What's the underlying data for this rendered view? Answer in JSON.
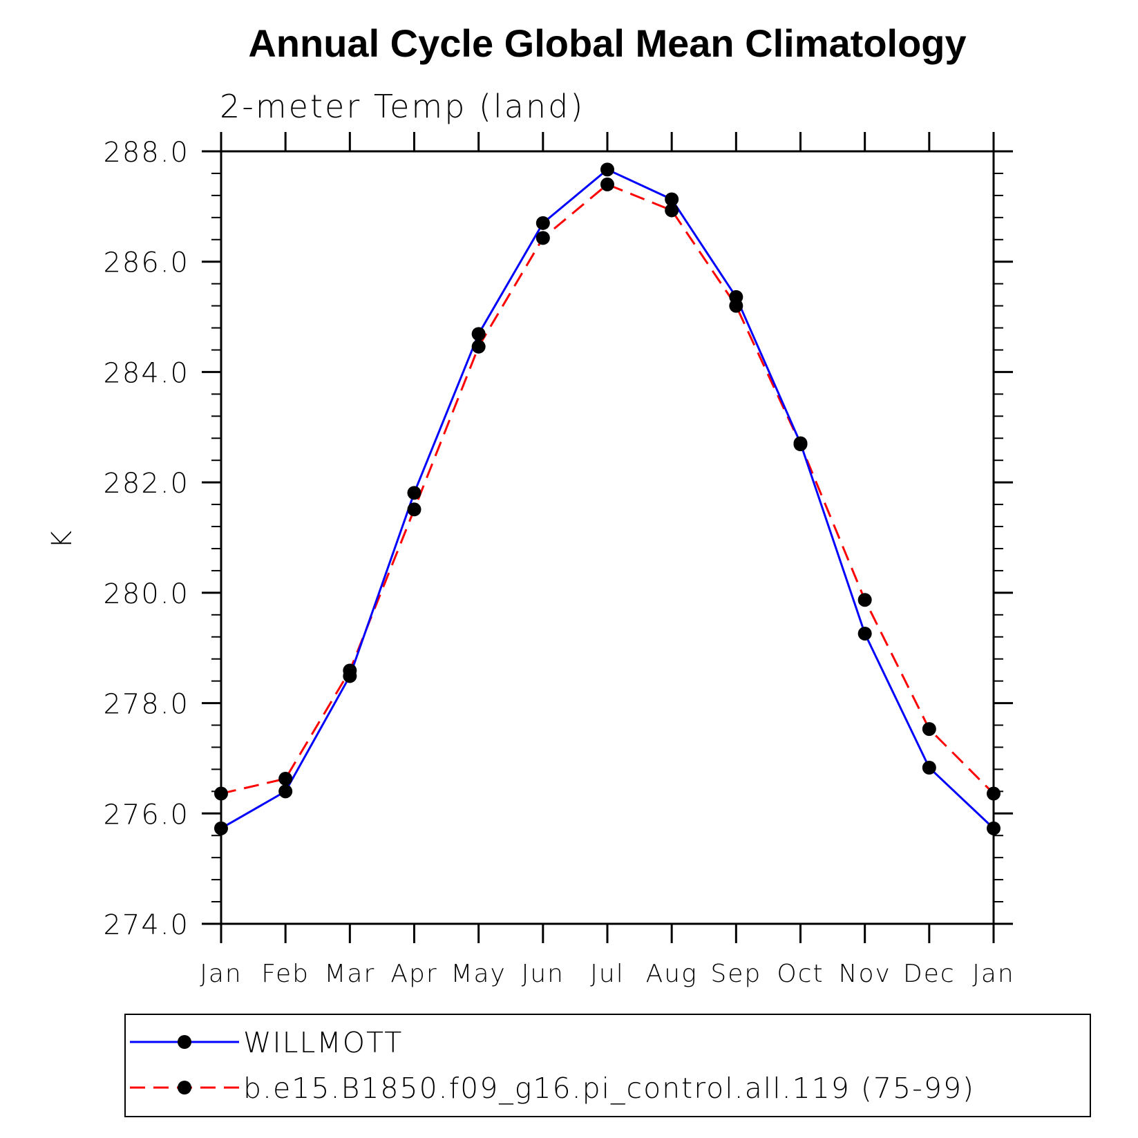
{
  "chart_data": {
    "type": "line",
    "title": "Annual Cycle Global Mean Climatology",
    "subtitle": "2-meter Temp (land)",
    "ylabel": "K",
    "xlabel": "",
    "categories": [
      "Jan",
      "Feb",
      "Mar",
      "Apr",
      "May",
      "Jun",
      "Jul",
      "Aug",
      "Sep",
      "Oct",
      "Nov",
      "Dec",
      "Jan"
    ],
    "ylim": [
      274.0,
      288.0
    ],
    "yticks": [
      274.0,
      276.0,
      278.0,
      280.0,
      282.0,
      284.0,
      286.0,
      288.0
    ],
    "ytick_labels": [
      "274.0",
      "276.0",
      "278.0",
      "280.0",
      "282.0",
      "284.0",
      "286.0",
      "288.0"
    ],
    "series": [
      {
        "name": "WILLMOTT",
        "color": "#0000ff",
        "dash": "solid",
        "values": [
          275.73,
          276.4,
          278.49,
          281.81,
          284.69,
          286.7,
          287.67,
          287.13,
          285.36,
          282.71,
          279.26,
          276.83,
          275.73
        ]
      },
      {
        "name": "b.e15.B1850.f09_g16.pi_control.all.119 (75-99)",
        "color": "#ff0000",
        "dash": "dashed",
        "values": [
          276.36,
          276.63,
          278.59,
          281.51,
          284.46,
          286.43,
          287.4,
          286.93,
          285.2,
          282.69,
          279.87,
          277.53,
          276.36
        ]
      }
    ],
    "legend": "bottom",
    "grid": false
  }
}
